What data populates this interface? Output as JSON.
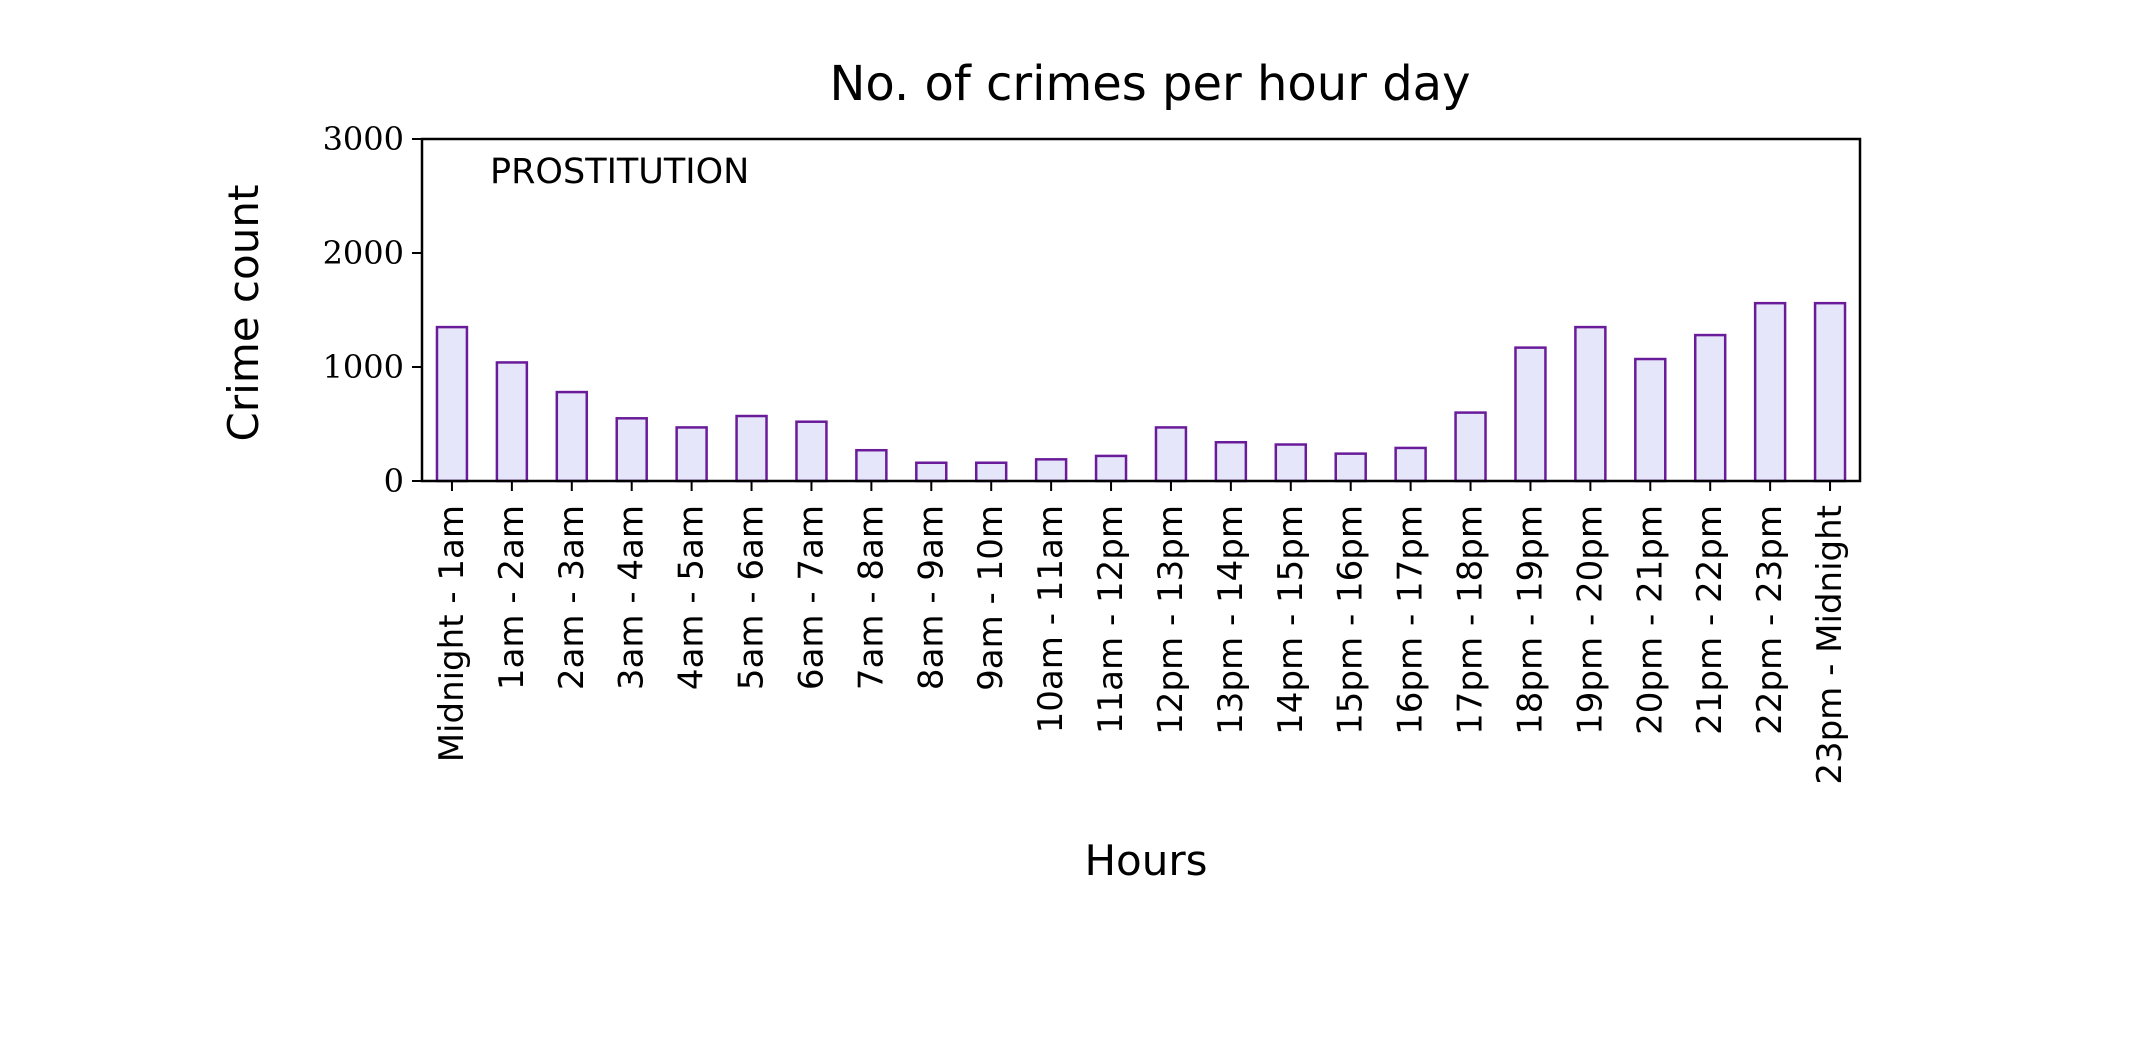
{
  "chart_data": {
    "type": "bar",
    "title": "No. of crimes per hour day",
    "xlabel": "Hours",
    "ylabel": "Crime count",
    "annotation": "PROSTITUTION",
    "categories": [
      "Midnight - 1am",
      "1am - 2am",
      "2am - 3am",
      "3am - 4am",
      "4am - 5am",
      "5am - 6am",
      "6am - 7am",
      "7am - 8am",
      "8am - 9am",
      "9am - 10m",
      "10am - 11am",
      "11am - 12pm",
      "12pm - 13pm",
      "13pm - 14pm",
      "14pm - 15pm",
      "15pm - 16pm",
      "16pm - 17pm",
      "17pm - 18pm",
      "18pm - 19pm",
      "19pm - 20pm",
      "20pm - 21pm",
      "21pm - 22pm",
      "22pm - 23pm",
      "23pm - Midnight"
    ],
    "values": [
      1350,
      1040,
      780,
      550,
      470,
      570,
      520,
      270,
      160,
      160,
      190,
      220,
      470,
      340,
      320,
      240,
      290,
      600,
      1170,
      1350,
      1070,
      1280,
      1560,
      1560
    ],
    "ylim": [
      0,
      3000
    ],
    "yticks": [
      0,
      1000,
      2000,
      3000
    ],
    "grid": false,
    "colors": {
      "bar_fill": "#e6e6fa",
      "bar_edge": "#6a1b9a",
      "frame": "#000000"
    }
  }
}
